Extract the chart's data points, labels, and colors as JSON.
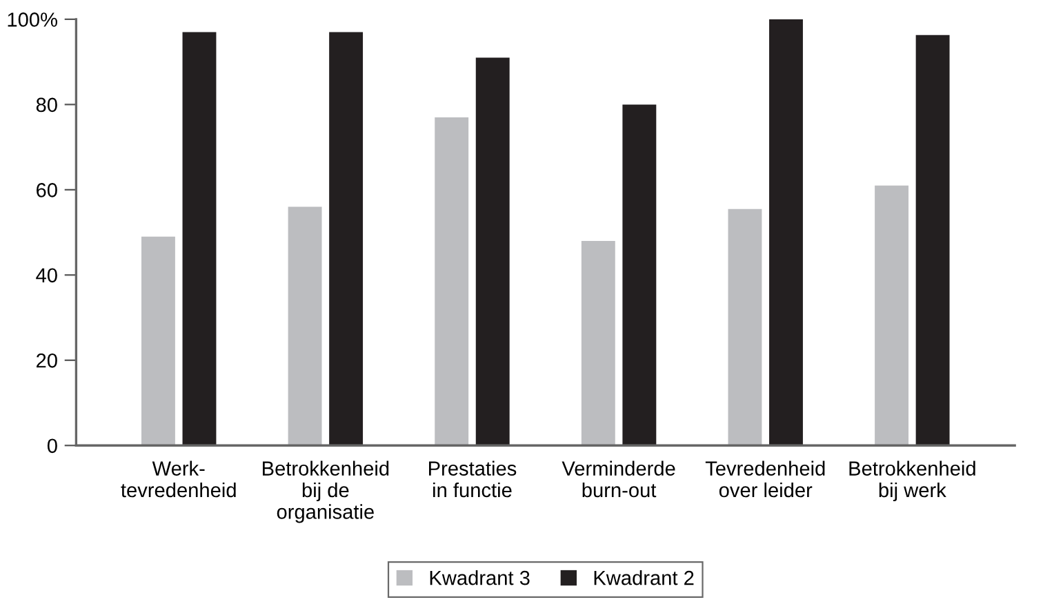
{
  "chart_data": {
    "type": "bar",
    "categories": [
      "Werk-\ntevredenheid",
      "Betrokkenheid\nbij de\norganisatie",
      "Prestaties\nin functie",
      "Verminderde\nburn-out",
      "Tevredenheid\nover leider",
      "Betrokkenheid\nbij werk"
    ],
    "series": [
      {
        "name": "Kwadrant 3",
        "color": "#bcbdc0",
        "values": [
          49,
          56,
          77,
          48,
          55.5,
          61
        ]
      },
      {
        "name": "Kwadrant 2",
        "color": "#231f20",
        "values": [
          97,
          97,
          91,
          80,
          100,
          96.3
        ]
      }
    ],
    "ylim": [
      0,
      100
    ],
    "yticks": [
      0,
      20,
      40,
      60,
      80,
      {
        "value": 100,
        "label": "100%"
      }
    ],
    "grid": false,
    "legend": "bottom"
  }
}
